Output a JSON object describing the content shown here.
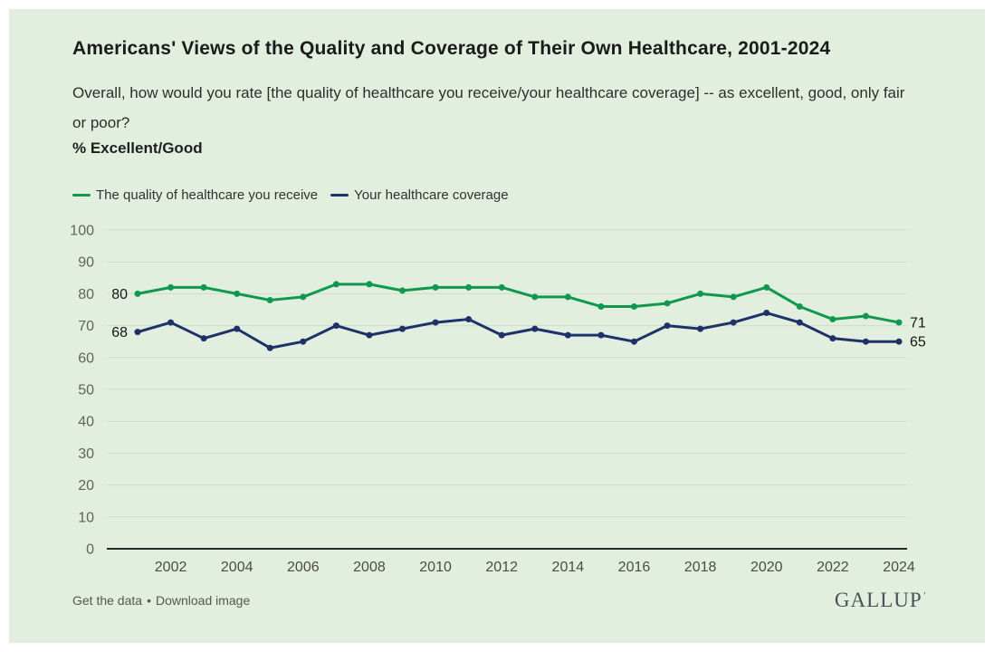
{
  "header": {
    "title": "Americans' Views of the Quality and Coverage of Their Own Healthcare, 2001-2024",
    "subtitle": "Overall, how would you rate [the quality of healthcare you receive/your healthcare coverage] -- as excellent, good, only fair or poor?",
    "measure_label": "% Excellent/Good"
  },
  "legend": [
    {
      "label": "The quality of healthcare you receive",
      "color": "#10994e"
    },
    {
      "label": "Your healthcare coverage",
      "color": "#1e3269"
    }
  ],
  "chart_data": {
    "type": "line",
    "title": "Americans' Views of the Quality and Coverage of Their Own Healthcare, 2001-2024",
    "ylabel": "% Excellent/Good",
    "x": [
      2001,
      2002,
      2003,
      2004,
      2005,
      2006,
      2007,
      2008,
      2009,
      2010,
      2011,
      2012,
      2013,
      2014,
      2015,
      2016,
      2017,
      2018,
      2019,
      2020,
      2021,
      2022,
      2023,
      2024
    ],
    "series": [
      {
        "name": "The quality of healthcare you receive",
        "color": "#10994e",
        "values": [
          80,
          82,
          82,
          80,
          78,
          79,
          83,
          83,
          81,
          82,
          82,
          82,
          79,
          79,
          76,
          76,
          77,
          80,
          79,
          82,
          76,
          72,
          73,
          71
        ]
      },
      {
        "name": "Your healthcare coverage",
        "color": "#1e3269",
        "values": [
          68,
          71,
          66,
          69,
          63,
          65,
          70,
          67,
          69,
          71,
          72,
          67,
          69,
          67,
          67,
          65,
          70,
          69,
          71,
          74,
          71,
          66,
          65,
          65
        ]
      }
    ],
    "ylim": [
      0,
      100
    ],
    "yticks": [
      0,
      10,
      20,
      30,
      40,
      50,
      60,
      70,
      80,
      90,
      100
    ],
    "xtick_labels": [
      "2002",
      "2004",
      "2006",
      "2008",
      "2010",
      "2012",
      "2014",
      "2016",
      "2018",
      "2020",
      "2022",
      "2024"
    ],
    "grid": true,
    "legend_position": "top",
    "point_labels": {
      "first": [
        "80",
        "68"
      ],
      "last": [
        "71",
        "65"
      ]
    }
  },
  "footer": {
    "get_data_label": "Get the data",
    "separator": "•",
    "download_label": "Download image",
    "logo": "GALLUP",
    "logo_mark": "’"
  },
  "colors": {
    "panel_background": "#e2efdf",
    "quality_green": "#10994e",
    "coverage_navy": "#1e3269",
    "gridline": "#cfdccd",
    "axis_line": "#2a2a2a",
    "y_tick_label": "#626260",
    "x_tick_label": "#4b4b49",
    "point_label": "#161616"
  }
}
